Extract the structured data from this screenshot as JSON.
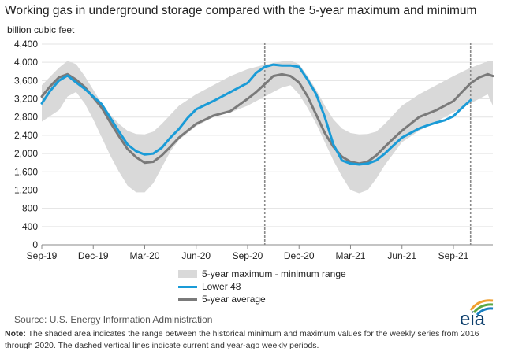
{
  "header": {
    "title": "Working gas in underground  storage compared with the 5-year maximum and minimum",
    "unit": "billion cubic feet"
  },
  "legend": {
    "range_label": "5-year maximum - minimum range",
    "lower48_label": "Lower 48",
    "avg_label": "5-year average"
  },
  "source": "Source:  U.S. Energy Information Administration",
  "note": {
    "prefix": "Note:",
    "text": " The shaded area indicates the range between the historical minimum and maximum values for the weekly series from 2016 through 2020. The dashed vertical lines indicate current and year-ago weekly periods."
  },
  "logo": {
    "text": "eia"
  },
  "colors": {
    "lower48": "#1a9bd7",
    "average": "#7a7a7a",
    "range": "#d9d9d9"
  },
  "chart_data": {
    "type": "line",
    "title": "Working gas in underground  storage compared with the 5-year maximum and minimum",
    "ylabel": "billion cubic feet",
    "ylim": [
      0,
      4400
    ],
    "yticks": [
      0,
      400,
      800,
      1200,
      1600,
      2000,
      2400,
      2800,
      3200,
      3600,
      4000,
      4400
    ],
    "x_tick_labels": [
      "Sep-19",
      "Dec-19",
      "Mar-20",
      "Jun-20",
      "Sep-20",
      "Dec-20",
      "Mar-21",
      "Jun-21",
      "Sep-21"
    ],
    "x_tick_months": [
      0,
      3,
      6,
      9,
      12,
      15,
      18,
      21,
      24
    ],
    "xlim_months": [
      0,
      26.3
    ],
    "vertical_dashed_months": [
      13.0,
      25.0
    ],
    "grid": "horizontal",
    "band": {
      "name": "5-year maximum - minimum range",
      "month": [
        0,
        1,
        1.5,
        2,
        2.5,
        3,
        3.5,
        4,
        4.5,
        5,
        5.5,
        6,
        6.5,
        7,
        7.5,
        8,
        9,
        10,
        11,
        12,
        13,
        14,
        14.5,
        15,
        15.5,
        16,
        16.5,
        17,
        17.5,
        18,
        18.5,
        19,
        19.5,
        20,
        20.5,
        21,
        22,
        23,
        24,
        25,
        26,
        26.3
      ],
      "max": [
        3500,
        3880,
        4030,
        3960,
        3700,
        3400,
        3100,
        2850,
        2650,
        2500,
        2430,
        2420,
        2480,
        2650,
        2850,
        3050,
        3300,
        3500,
        3700,
        3850,
        3950,
        4020,
        4040,
        3960,
        3700,
        3400,
        3050,
        2750,
        2550,
        2450,
        2420,
        2430,
        2480,
        2650,
        2850,
        3050,
        3300,
        3500,
        3700,
        3880,
        4020,
        4030
      ],
      "min": [
        2700,
        2950,
        3250,
        3350,
        3100,
        2750,
        2350,
        1950,
        1600,
        1300,
        1150,
        1150,
        1350,
        1700,
        2050,
        2300,
        2600,
        2800,
        2900,
        3050,
        3250,
        3450,
        3500,
        3300,
        3000,
        2650,
        2250,
        1850,
        1500,
        1200,
        1130,
        1200,
        1450,
        1750,
        2000,
        2250,
        2500,
        2700,
        2900,
        3100,
        3300,
        3050
      ]
    },
    "series": [
      {
        "name": "5-year average",
        "month": [
          0,
          0.5,
          1,
          1.5,
          2,
          2.5,
          3,
          3.5,
          4,
          4.5,
          5,
          5.5,
          6,
          6.5,
          7,
          7.5,
          8,
          9,
          10,
          11,
          12,
          12.5,
          13,
          13.5,
          14,
          14.5,
          15,
          15.5,
          16,
          16.5,
          17,
          17.5,
          18,
          18.5,
          19,
          19.5,
          20,
          20.5,
          21,
          22,
          23,
          24,
          24.5,
          25,
          25.5,
          26,
          26.3
        ],
        "value": [
          3250,
          3480,
          3670,
          3740,
          3620,
          3460,
          3230,
          3000,
          2680,
          2380,
          2100,
          1920,
          1800,
          1820,
          1960,
          2150,
          2350,
          2650,
          2830,
          2930,
          3200,
          3350,
          3520,
          3700,
          3740,
          3700,
          3560,
          3250,
          2850,
          2450,
          2150,
          1930,
          1820,
          1780,
          1820,
          1960,
          2150,
          2330,
          2500,
          2800,
          2950,
          3150,
          3350,
          3540,
          3670,
          3740,
          3700
        ]
      },
      {
        "name": "Lower 48",
        "month": [
          0,
          0.5,
          1,
          1.5,
          2,
          2.5,
          3,
          3.5,
          4,
          4.5,
          5,
          5.5,
          6,
          6.5,
          7,
          7.5,
          8,
          8.5,
          9,
          10,
          11,
          12,
          12.5,
          13,
          13.5,
          14,
          14.5,
          15,
          15.5,
          16,
          16.5,
          17,
          17.5,
          18,
          18.5,
          19,
          19.5,
          20,
          20.5,
          21,
          21.5,
          22,
          22.5,
          23,
          23.5,
          24,
          24.5,
          25
        ],
        "value": [
          3100,
          3380,
          3600,
          3710,
          3560,
          3420,
          3250,
          3080,
          2780,
          2480,
          2200,
          2050,
          1980,
          2000,
          2130,
          2350,
          2540,
          2780,
          2970,
          3150,
          3350,
          3550,
          3770,
          3900,
          3950,
          3930,
          3930,
          3900,
          3620,
          3300,
          2800,
          2200,
          1850,
          1780,
          1760,
          1780,
          1850,
          2000,
          2180,
          2350,
          2450,
          2550,
          2620,
          2680,
          2730,
          2820,
          3000,
          3170
        ]
      }
    ]
  }
}
